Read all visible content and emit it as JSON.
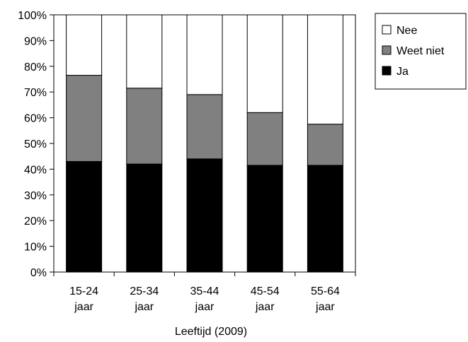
{
  "chart_data": {
    "type": "bar",
    "stacked": true,
    "percent_stacked": true,
    "categories": [
      [
        "15-24",
        "jaar"
      ],
      [
        "25-34",
        "jaar"
      ],
      [
        "35-44",
        "jaar"
      ],
      [
        "45-54",
        "jaar"
      ],
      [
        "55-64",
        "jaar"
      ]
    ],
    "series": [
      {
        "name": "Ja",
        "values": [
          43,
          42,
          44,
          41.5,
          41.5
        ],
        "color": "#000000"
      },
      {
        "name": "Weet niet",
        "values": [
          33.5,
          29.5,
          25,
          20.5,
          16
        ],
        "color": "#808080"
      },
      {
        "name": "Nee",
        "values": [
          23.5,
          28.5,
          31,
          38,
          42.5
        ],
        "color": "#ffffff"
      }
    ],
    "legend_order": [
      "Nee",
      "Weet niet",
      "Ja"
    ],
    "legend_position": "top-right",
    "xlabel": "Leeftijd (2009)",
    "ylabel": "",
    "ylim": [
      0,
      100
    ],
    "yticks": [
      "0%",
      "10%",
      "20%",
      "30%",
      "40%",
      "50%",
      "60%",
      "70%",
      "80%",
      "90%",
      "100%"
    ],
    "grid": false
  }
}
